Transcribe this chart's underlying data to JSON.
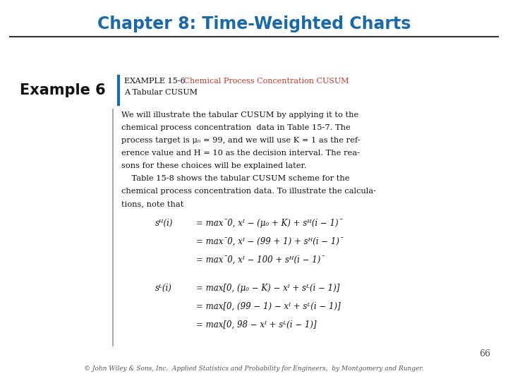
{
  "title": "Chapter 8: Time-Weighted Charts",
  "title_color": "#1a6aaa",
  "title_fontsize": 17,
  "example_label": "Example 6",
  "example_fontsize": 15,
  "box_example_text": "EXAMPLE 15-6",
  "box_colored_text": "   Chemical Process Concentration CUSUM",
  "box_orange": "#c0392b",
  "box_subtitle": "A Tabular CUSUM",
  "body_lines": [
    "We will illustrate the tabular CUSUM by applying it to the",
    "chemical process concentration  data in Table 15-7. The",
    "process target is μ₀ = 99, and we will use K = 1 as the ref-",
    "erence value and H = 10 as the decision interval. The rea-",
    "sons for these choices will be explained later.",
    "    Table 15-8 shows the tabular CUSUM scheme for the",
    "chemical process concentration data. To illustrate the calcula-",
    "tions, note that"
  ],
  "eq1_lhs": "sᴴ(i)",
  "eq1_lines": [
    "= max¯0, xᴵ − (μ₀ + K) + sᴴ(i − 1)¯",
    "= max¯0, xᴵ − (99 + 1) + sᴴ(i − 1)¯",
    "= max¯0, xᴵ − 100 + sᴴ(i − 1)¯"
  ],
  "eq2_lhs": "sᴸ(i)",
  "eq2_lines": [
    "= max[0, (μ₀ − K) − xᴵ + sᴸ(i − 1)]",
    "= max[0, (99 − 1) − xᴵ + sᴸ(i − 1)]",
    "= max[0, 98 − xᴵ + sᴸ(i − 1)]"
  ],
  "page_number": "66",
  "footer_text": "© John Wiley & Sons, Inc.  Applied Statistics and Probability for Engineers,  by Montgomery and Runger.",
  "background_color": "#ffffff"
}
